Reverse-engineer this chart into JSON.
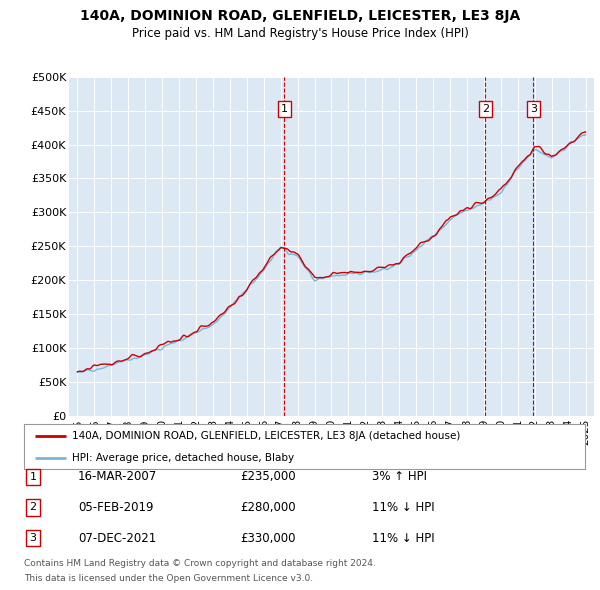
{
  "title": "140A, DOMINION ROAD, GLENFIELD, LEICESTER, LE3 8JA",
  "subtitle": "Price paid vs. HM Land Registry's House Price Index (HPI)",
  "plot_bg_color": "#dce9f5",
  "ylim": [
    0,
    500000
  ],
  "yticks": [
    0,
    50000,
    100000,
    150000,
    200000,
    250000,
    300000,
    350000,
    400000,
    450000,
    500000
  ],
  "ytick_labels": [
    "£0",
    "£50K",
    "£100K",
    "£150K",
    "£200K",
    "£250K",
    "£300K",
    "£350K",
    "£400K",
    "£450K",
    "£500K"
  ],
  "hpi_color": "#7ab5d9",
  "sold_color": "#cc0000",
  "vline_color": "#cc0000",
  "transactions": [
    {
      "label": "1",
      "x": 2007.21,
      "price": 235000,
      "date": "16-MAR-2007",
      "pct": "3%",
      "dir": "↑"
    },
    {
      "label": "2",
      "x": 2019.09,
      "price": 280000,
      "date": "05-FEB-2019",
      "pct": "11%",
      "dir": "↓"
    },
    {
      "label": "3",
      "x": 2021.92,
      "price": 330000,
      "date": "07-DEC-2021",
      "pct": "11%",
      "dir": "↓"
    }
  ],
  "legend_line1": "140A, DOMINION ROAD, GLENFIELD, LEICESTER, LE3 8JA (detached house)",
  "legend_line2": "HPI: Average price, detached house, Blaby",
  "footer1": "Contains HM Land Registry data © Crown copyright and database right 2024.",
  "footer2": "This data is licensed under the Open Government Licence v3.0.",
  "xmin": 1994.5,
  "xmax": 2025.5,
  "xticks": [
    1995,
    1996,
    1997,
    1998,
    1999,
    2000,
    2001,
    2002,
    2003,
    2004,
    2005,
    2006,
    2007,
    2008,
    2009,
    2010,
    2011,
    2012,
    2013,
    2014,
    2015,
    2016,
    2017,
    2018,
    2019,
    2020,
    2021,
    2022,
    2023,
    2024,
    2025
  ]
}
